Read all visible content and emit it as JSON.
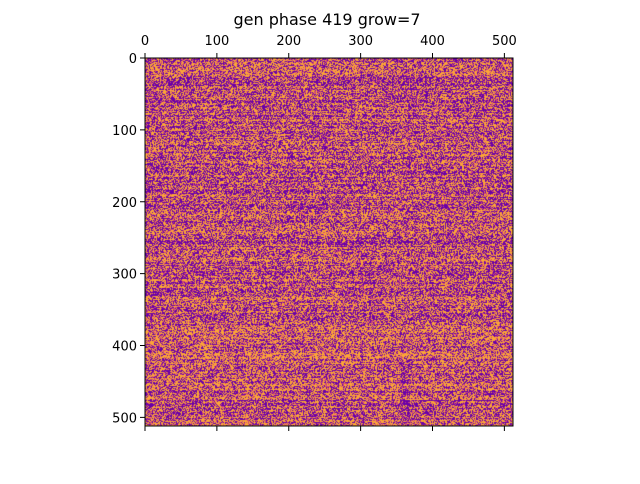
{
  "chart_data": {
    "type": "heatmap",
    "title": "gen phase 419 grow=7",
    "xlabel": "",
    "ylabel": "",
    "xlim": [
      0,
      512
    ],
    "ylim": [
      512,
      0
    ],
    "x_ticks": [
      0,
      100,
      200,
      300,
      400,
      500
    ],
    "y_ticks": [
      0,
      100,
      200,
      300,
      400,
      500
    ],
    "x_axis_position": "top",
    "y_axis_inverted": true,
    "grid": false,
    "legend": "none",
    "colormap": "plasma",
    "colors": {
      "low": "#6a00a8",
      "mid": "#cc4778",
      "high": "#fca636",
      "background": "#ffffff",
      "axis": "#000000"
    },
    "grid_size": [
      512,
      512
    ],
    "note": "Dense, noisy pattern of purple, pink, and orange cells across the 512x512 grid."
  }
}
